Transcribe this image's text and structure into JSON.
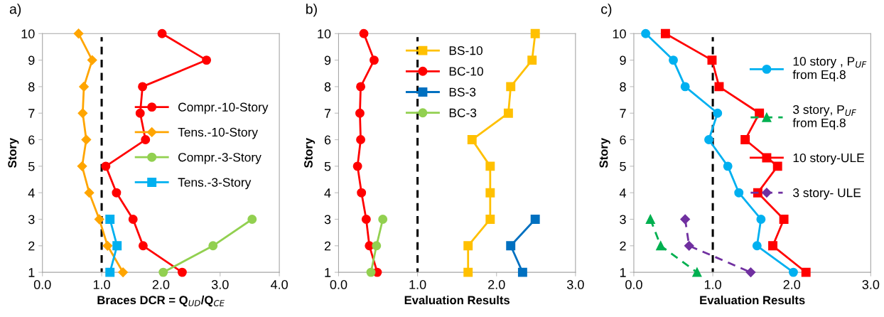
{
  "chart_data": [
    {
      "type": "line",
      "orientation": "horizontal",
      "title": "a)",
      "xlabel": "Braces DCR = Q$_{UD}$/Q$_{CE}$",
      "ylabel": "Story",
      "categories": [
        "10",
        "9",
        "8",
        "7",
        "6",
        "5",
        "4",
        "3",
        "2",
        "1"
      ],
      "xlim": [
        0,
        4
      ],
      "xticks": [
        {
          "value": 0,
          "label": "0.0"
        },
        {
          "value": 1,
          "label": "1.0"
        },
        {
          "value": 2,
          "label": "2.0"
        },
        {
          "value": 3,
          "label": "3.0"
        },
        {
          "value": 4,
          "label": "4.0"
        }
      ],
      "grid": false,
      "legend": "right",
      "line_style": "solid",
      "ref_lines": [
        {
          "axis": "x",
          "value": 1,
          "label": null,
          "color": "#000000",
          "line_style": "dashed"
        }
      ],
      "series": [
        {
          "name": "Compr.-10-Story",
          "color": "#ff0000",
          "marker": "circle",
          "values": [
            2.02,
            2.77,
            1.69,
            1.65,
            1.74,
            1.07,
            1.25,
            1.53,
            1.7,
            2.36
          ]
        },
        {
          "name": "Tens.-10-Story",
          "color": "#ffa500",
          "marker": "diamond",
          "values": [
            0.61,
            0.84,
            0.7,
            0.68,
            0.74,
            0.67,
            0.79,
            0.96,
            1.1,
            1.36
          ]
        },
        {
          "name": "Compr.-3-Story",
          "color": "#92d050",
          "marker": "circle",
          "values": [
            null,
            null,
            null,
            null,
            null,
            null,
            null,
            3.54,
            2.88,
            2.04
          ]
        },
        {
          "name": "Tens.-3-Story",
          "color": "#00b0f0",
          "marker": "square",
          "values": [
            null,
            null,
            null,
            null,
            null,
            null,
            null,
            1.14,
            1.26,
            1.14
          ]
        }
      ]
    },
    {
      "type": "line",
      "orientation": "horizontal",
      "title": "b)",
      "xlabel": "Evaluation Results",
      "ylabel": "Story",
      "categories": [
        "10",
        "9",
        "8",
        "7",
        "6",
        "5",
        "4",
        "3",
        "2",
        "1"
      ],
      "xlim": [
        0,
        3
      ],
      "xticks": [
        {
          "value": 0,
          "label": "0.0"
        },
        {
          "value": 1,
          "label": "1.0"
        },
        {
          "value": 2,
          "label": "2.0"
        },
        {
          "value": 3,
          "label": "3.0"
        }
      ],
      "grid": false,
      "legend": "top",
      "line_style": "solid",
      "ref_lines": [
        {
          "axis": "x",
          "value": 1,
          "label": null,
          "color": "#000000",
          "line_style": "dashed"
        }
      ],
      "series": [
        {
          "name": "BS-10",
          "color": "#ffc000",
          "marker": "square",
          "values": [
            2.49,
            2.45,
            2.18,
            2.15,
            1.69,
            1.92,
            1.92,
            1.92,
            1.64,
            1.64
          ]
        },
        {
          "name": "BC-10",
          "color": "#ff0000",
          "marker": "circle",
          "values": [
            0.32,
            0.45,
            0.28,
            0.27,
            0.28,
            0.24,
            0.29,
            0.35,
            0.39,
            0.49
          ]
        },
        {
          "name": "BS-3",
          "color": "#0070c0",
          "marker": "square",
          "values": [
            null,
            null,
            null,
            null,
            null,
            null,
            null,
            2.49,
            2.18,
            2.33
          ]
        },
        {
          "name": "BC-3",
          "color": "#92d050",
          "marker": "circle",
          "values": [
            null,
            null,
            null,
            null,
            null,
            null,
            null,
            0.56,
            0.48,
            0.41
          ]
        }
      ]
    },
    {
      "type": "line",
      "orientation": "horizontal",
      "title": "c)",
      "xlabel": "Evaluation Results",
      "ylabel": "Story",
      "categories": [
        "10",
        "9",
        "8",
        "7",
        "6",
        "5",
        "4",
        "3",
        "2",
        "1"
      ],
      "xlim": [
        0,
        3
      ],
      "xticks": [
        {
          "value": 0,
          "label": "0.0"
        },
        {
          "value": 1,
          "label": "1.0"
        },
        {
          "value": 2,
          "label": "2.0"
        },
        {
          "value": 3,
          "label": "3.0"
        }
      ],
      "grid": false,
      "legend": "top right",
      "line_style": "solid",
      "ref_lines": [
        {
          "axis": "x",
          "value": 1,
          "label": null,
          "color": "#000000",
          "line_style": "dashed"
        }
      ],
      "series": [
        {
          "name": "10 story , P$_{UF}$\nfrom Eq.8",
          "color": "#00b0f0",
          "marker": "circle",
          "values": [
            0.15,
            0.5,
            0.65,
            1.06,
            0.95,
            1.19,
            1.33,
            1.61,
            1.56,
            2.02
          ]
        },
        {
          "name": "3 story, P$_{UF}$\nfrom Eq.8",
          "color": "#00b050",
          "marker": "triangle",
          "line_style": "dashed",
          "values": [
            null,
            null,
            null,
            null,
            null,
            null,
            null,
            0.21,
            0.34,
            0.8
          ]
        },
        {
          "name": "10 story-ULE",
          "color": "#ff0000",
          "marker": "square",
          "values": [
            0.4,
            0.99,
            1.08,
            1.59,
            1.41,
            1.82,
            1.57,
            1.9,
            1.76,
            2.18
          ]
        },
        {
          "name": "3 story- ULE",
          "color": "#7030a0",
          "marker": "diamond",
          "line_style": "dashed",
          "values": [
            null,
            null,
            null,
            null,
            null,
            null,
            null,
            0.65,
            0.7,
            1.48
          ]
        }
      ]
    }
  ]
}
